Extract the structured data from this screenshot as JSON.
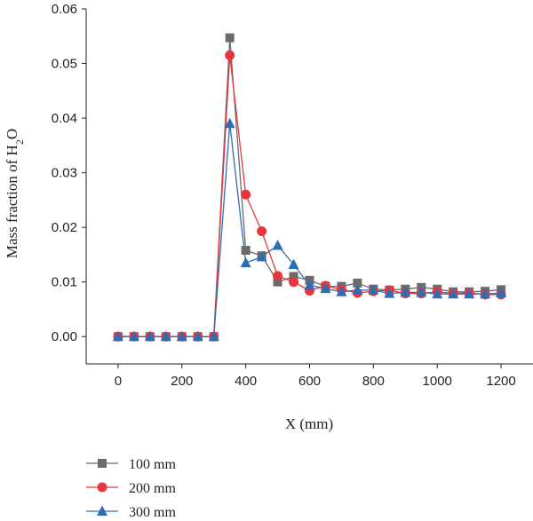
{
  "chart_data": {
    "type": "line",
    "xlabel": "X (mm)",
    "ylabel": {
      "prefix": "Mass fraction of H",
      "sub": "2",
      "suffix": "O"
    },
    "xlim": [
      -100,
      1300
    ],
    "ylim": [
      -0.005,
      0.06
    ],
    "xticks": [
      0,
      200,
      400,
      600,
      800,
      1000,
      1200
    ],
    "xtick_labels": [
      "0",
      "200",
      "400",
      "600",
      "800",
      "1000",
      "1200"
    ],
    "yticks": [
      0.0,
      0.01,
      0.02,
      0.03,
      0.04,
      0.05,
      0.06
    ],
    "ytick_labels": [
      "0.00",
      "0.01",
      "0.02",
      "0.03",
      "0.04",
      "0.05",
      "0.06"
    ],
    "grid": false,
    "legend_position": "bottom-left",
    "x": [
      0,
      50,
      100,
      150,
      200,
      250,
      300,
      350,
      400,
      450,
      500,
      550,
      600,
      650,
      700,
      750,
      800,
      850,
      900,
      950,
      1000,
      1050,
      1100,
      1150,
      1200
    ],
    "series": [
      {
        "name": "100 mm",
        "color": "#6b6b6b",
        "marker": "square",
        "values": [
          0,
          0,
          0,
          0,
          0,
          0,
          0,
          0.0547,
          0.0158,
          0.0148,
          0.01,
          0.011,
          0.0103,
          0.0092,
          0.0092,
          0.0098,
          0.0087,
          0.0085,
          0.0087,
          0.009,
          0.0087,
          0.0082,
          0.0082,
          0.0083,
          0.0086
        ]
      },
      {
        "name": "200 mm",
        "color": "#e8363c",
        "marker": "circle",
        "values": [
          0,
          0,
          0,
          0,
          0,
          0,
          0,
          0.0515,
          0.026,
          0.0193,
          0.0111,
          0.01,
          0.0084,
          0.0093,
          0.0086,
          0.008,
          0.0083,
          0.0085,
          0.0079,
          0.0079,
          0.0082,
          0.0079,
          0.008,
          0.0077,
          0.0077
        ]
      },
      {
        "name": "300 mm",
        "color": "#2e6db4",
        "marker": "triangle",
        "values": [
          0,
          0,
          0,
          0,
          0,
          0,
          0,
          0.039,
          0.0135,
          0.0146,
          0.0167,
          0.0132,
          0.0094,
          0.0088,
          0.0082,
          0.0085,
          0.0085,
          0.0079,
          0.0081,
          0.0081,
          0.0078,
          0.0078,
          0.0078,
          0.0078,
          0.008
        ]
      }
    ]
  }
}
